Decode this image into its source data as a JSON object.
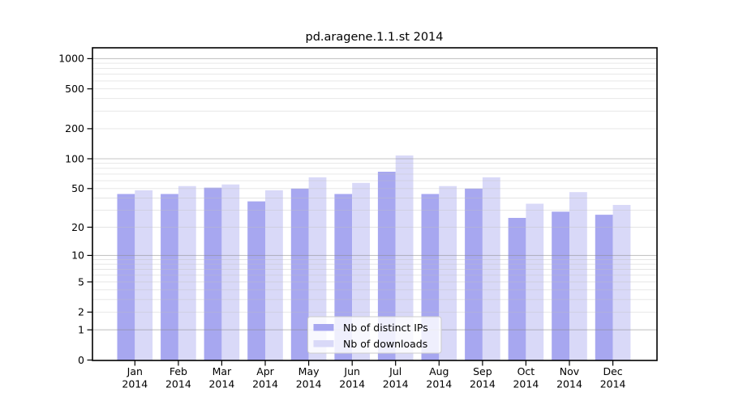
{
  "title": "pd.aragene.1.1.st 2014",
  "legend": {
    "items": [
      {
        "label": "Nb of distinct IPs",
        "color": "#a7a7f0"
      },
      {
        "label": "Nb of downloads",
        "color": "#d9d9f8"
      }
    ]
  },
  "chart_data": {
    "type": "bar",
    "title": "pd.aragene.1.1.st 2014",
    "categories": [
      "Jan 2014",
      "Feb 2014",
      "Mar 2014",
      "Apr 2014",
      "May 2014",
      "Jun 2014",
      "Jul 2014",
      "Aug 2014",
      "Sep 2014",
      "Oct 2014",
      "Nov 2014",
      "Dec 2014"
    ],
    "months": [
      "Jan",
      "Feb",
      "Mar",
      "Apr",
      "May",
      "Jun",
      "Jul",
      "Aug",
      "Sep",
      "Oct",
      "Nov",
      "Dec"
    ],
    "year": "2014",
    "series": [
      {
        "name": "Nb of distinct IPs",
        "color": "#a7a7f0",
        "values": [
          44,
          44,
          51,
          37,
          50,
          44,
          74,
          44,
          50,
          25,
          29,
          27
        ]
      },
      {
        "name": "Nb of downloads",
        "color": "#d9d9f8",
        "values": [
          48,
          53,
          55,
          48,
          65,
          57,
          108,
          53,
          65,
          35,
          46,
          34
        ]
      }
    ],
    "yscale": "log1p",
    "yticks": [
      0,
      1,
      2,
      5,
      10,
      20,
      50,
      100,
      200,
      500,
      1000
    ],
    "ylim": [
      0,
      1300
    ],
    "xlabel": "",
    "ylabel": "",
    "grid": true,
    "grid_major_color": "#c8c8c8",
    "grid_minor_color": "#e7e7e7",
    "legend_position": "lower center"
  }
}
